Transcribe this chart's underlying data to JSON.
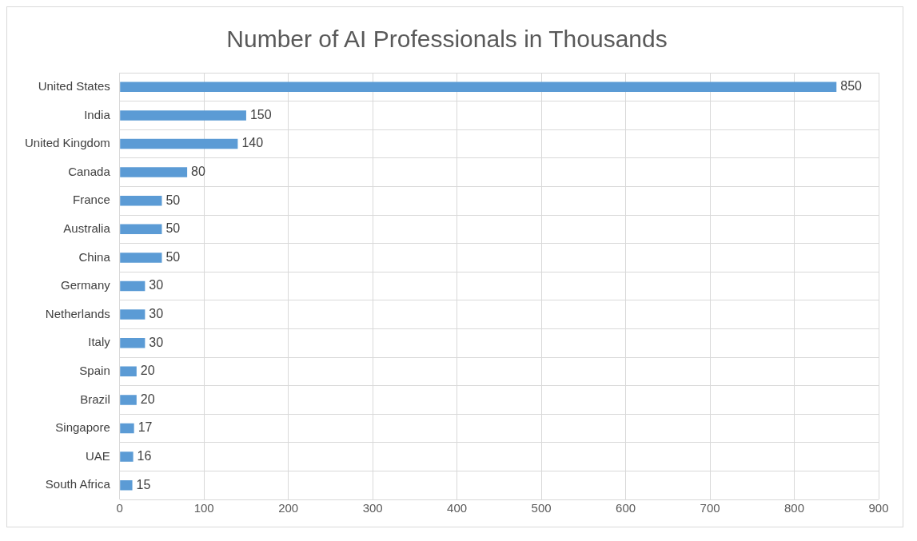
{
  "chart_data": {
    "type": "bar",
    "orientation": "horizontal",
    "title": "Number of AI Professionals in Thousands",
    "categories": [
      "United States",
      "India",
      "United Kingdom",
      "Canada",
      "France",
      "Australia",
      "China",
      "Germany",
      "Netherlands",
      "Italy",
      "Spain",
      "Brazil",
      "Singapore",
      "UAE",
      "South Africa"
    ],
    "values": [
      850,
      150,
      140,
      80,
      50,
      50,
      50,
      30,
      30,
      30,
      20,
      20,
      17,
      16,
      15
    ],
    "color": "#5b9bd5",
    "xlim": [
      0,
      900
    ],
    "xticks": [
      0,
      100,
      200,
      300,
      400,
      500,
      600,
      700,
      800,
      900
    ],
    "grid": true,
    "data_labels": true,
    "legend": false
  }
}
